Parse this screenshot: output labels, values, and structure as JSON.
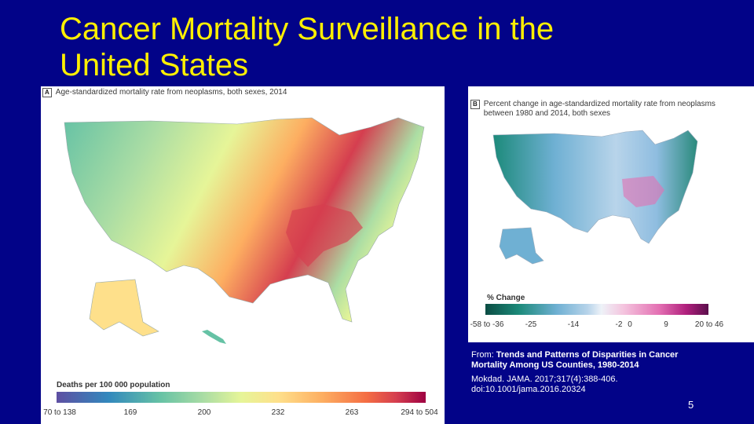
{
  "slide": {
    "title_line1": "Cancer Mortality Surveillance in the",
    "title_line2": "United States",
    "number": "5"
  },
  "panel_a": {
    "letter": "A",
    "heading": "Age-standardized mortality rate from neoplasms, both sexes, 2014",
    "legend_title": "Deaths per 100 000 population",
    "ticks": [
      "70 to 138",
      "169",
      "200",
      "232",
      "263",
      "294 to 504"
    ]
  },
  "panel_b": {
    "letter": "B",
    "heading": "Percent change in age-standardized mortality rate from neoplasms between 1980 and 2014, both sexes",
    "legend_title": "% Change",
    "ticks": [
      "-58 to -36",
      "-25",
      "-14",
      "-2",
      "0",
      "9",
      "20 to 46"
    ]
  },
  "citation": {
    "prefix": "From: ",
    "title": "Trends and Patterns of Disparities in Cancer Mortality Among US Counties, 1980-2014",
    "journal": "Mokdad. JAMA. 2017;317(4):388-406.",
    "doi": "doi:10.1001/jama.2016.20324"
  },
  "colors": {
    "background": "#020388",
    "title": "#ffef00",
    "text": "#ffffff"
  }
}
